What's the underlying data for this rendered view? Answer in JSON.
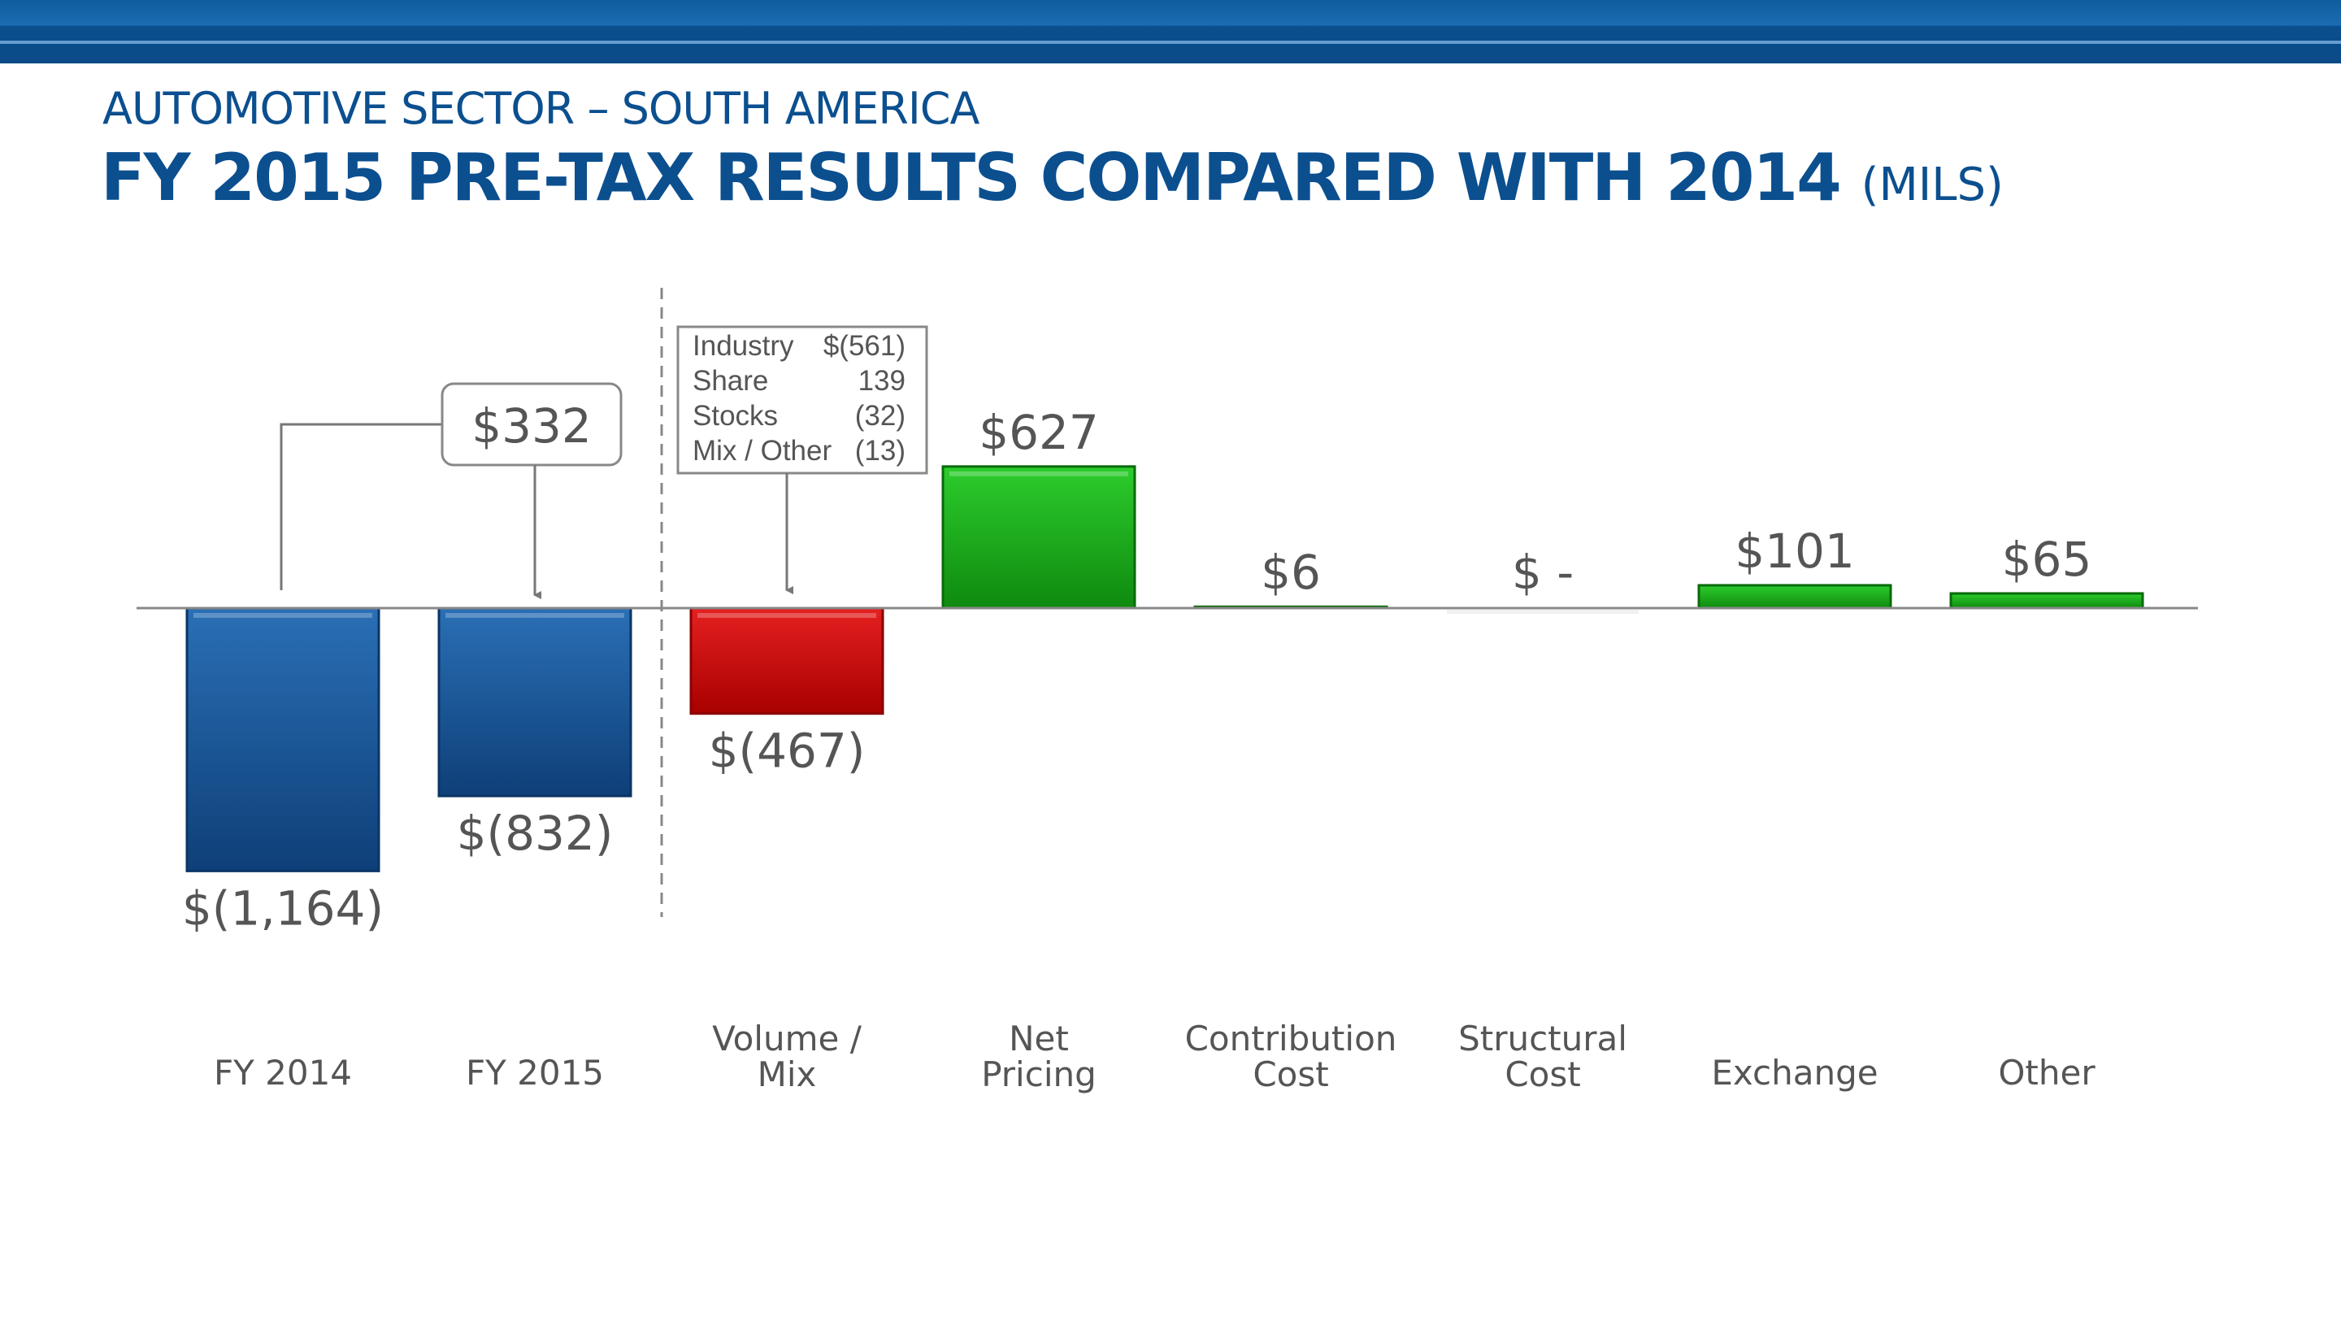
{
  "header": {
    "subtitle": "AUTOMOTIVE SECTOR – SOUTH AMERICA",
    "title": "FY 2015 PRE-TAX RESULTS COMPARED WITH 2014",
    "units": "(MILS)"
  },
  "colors": {
    "total": "#1a5a99",
    "negative": "#cc0000",
    "positive": "#18a818",
    "band": "#0b4f8f"
  },
  "chart_data": {
    "type": "bar",
    "subtype": "waterfall",
    "unit": "$ millions",
    "categories": [
      [
        "FY 2014"
      ],
      [
        "FY 2015"
      ],
      [
        "Volume /",
        "Mix"
      ],
      [
        "Net",
        "Pricing"
      ],
      [
        "Contribution",
        "Cost"
      ],
      [
        "Structural",
        "Cost"
      ],
      [
        "Exchange"
      ],
      [
        "Other"
      ]
    ],
    "values": [
      -1164,
      -832,
      -467,
      627,
      6,
      0,
      101,
      65
    ],
    "value_labels": [
      "$(1,164)",
      "$(832)",
      "$(467)",
      "$627",
      "$6",
      "$ -",
      "$101",
      "$65"
    ],
    "bar_kinds": [
      "total",
      "total",
      "negative",
      "positive",
      "positive",
      "none",
      "positive",
      "positive"
    ],
    "ylim": [
      -1300,
      1000
    ],
    "change_callout": "$332",
    "volume_mix_breakdown": [
      {
        "label": "Industry",
        "value": "$(561)"
      },
      {
        "label": "Share",
        "value": "139"
      },
      {
        "label": "Stocks",
        "value": "(32)"
      },
      {
        "label": "Mix / Other",
        "value": "(13)"
      }
    ]
  }
}
